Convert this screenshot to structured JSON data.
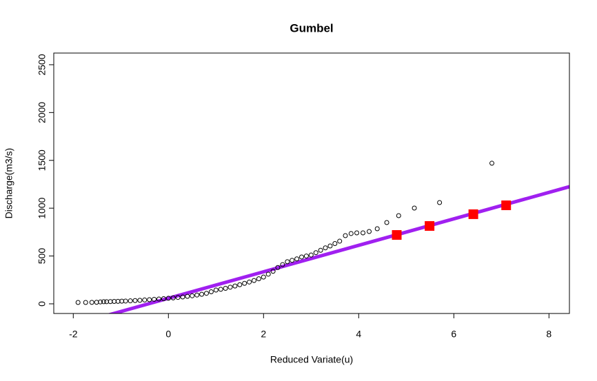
{
  "chart_data": {
    "type": "scatter",
    "title": "Gumbel",
    "x_label": "Reduced Variate(u)",
    "y_label": "Discharge(m3/s)",
    "xlim": [
      -2.41,
      8.43
    ],
    "ylim": [
      -101,
      2622
    ],
    "xticks": [
      -2,
      0,
      2,
      4,
      6,
      8
    ],
    "yticks": [
      0,
      500,
      1000,
      1500,
      2000,
      2500
    ],
    "grid": false,
    "series": [
      {
        "color": "#000000",
        "marker": "circle",
        "x": [
          -1.9,
          -1.74,
          -1.61,
          -1.51,
          -1.43,
          -1.36,
          -1.3,
          -1.22,
          -1.14,
          -1.06,
          -0.98,
          -0.9,
          -0.8,
          -0.7,
          -0.6,
          -0.5,
          -0.4,
          -0.3,
          -0.2,
          -0.1,
          0.0,
          0.1,
          0.2,
          0.3,
          0.4,
          0.5,
          0.6,
          0.7,
          0.8,
          0.9,
          1.0,
          1.1,
          1.2,
          1.3,
          1.4,
          1.5,
          1.6,
          1.7,
          1.8,
          1.9,
          2.0,
          2.1,
          2.2,
          2.3,
          2.4,
          2.5,
          2.6,
          2.7,
          2.8,
          2.9,
          3.0,
          3.1,
          3.2,
          3.3,
          3.4,
          3.5,
          3.6,
          3.72,
          3.84,
          3.96,
          4.09,
          4.22,
          4.39,
          4.59,
          4.84,
          5.17,
          5.7,
          6.8
        ],
        "values": [
          14,
          14,
          15,
          16,
          20,
          22,
          22,
          23,
          25,
          26,
          28,
          29,
          31,
          34,
          37,
          40,
          43,
          47,
          50,
          54,
          58,
          62,
          67,
          72,
          78,
          84,
          92,
          100,
          110,
          126,
          144,
          152,
          162,
          174,
          186,
          200,
          214,
          228,
          244,
          262,
          280,
          310,
          340,
          380,
          410,
          440,
          455,
          470,
          490,
          500,
          510,
          535,
          560,
          585,
          605,
          630,
          655,
          713,
          735,
          742,
          742,
          756,
          785,
          850,
          922,
          1001,
          1059,
          1470
        ]
      },
      {
        "color": "#ff0000",
        "marker": "square",
        "x": [
          4.8,
          5.49,
          6.41,
          7.1
        ],
        "values": [
          720,
          814,
          937,
          1030
        ]
      }
    ],
    "line": {
      "color": "#a020f0",
      "intercept": 58,
      "slope": 138.4
    }
  }
}
